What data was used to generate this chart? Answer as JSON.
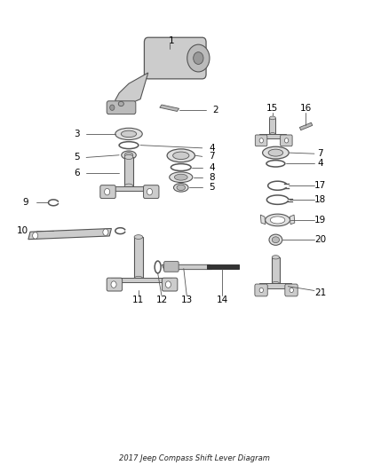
{
  "title": "2017 Jeep Compass Shift Lever Diagram",
  "bg_color": "#ffffff",
  "line_color": "#555555",
  "dark_color": "#333333",
  "fig_width": 4.38,
  "fig_height": 5.33
}
